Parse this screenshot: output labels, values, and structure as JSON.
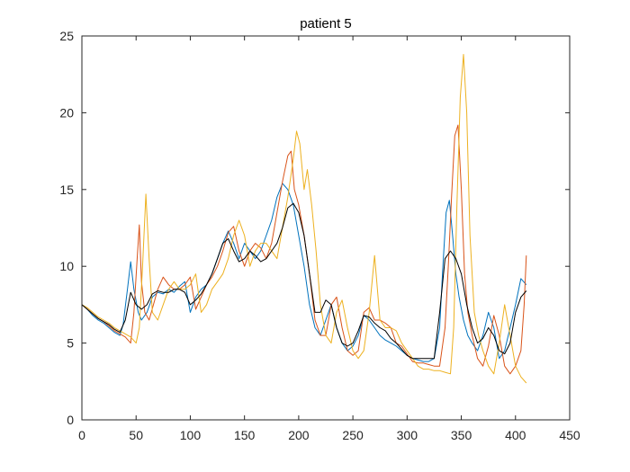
{
  "chart_data": {
    "type": "line",
    "title": "patient 5",
    "xlabel": "",
    "ylabel": "",
    "xlim": [
      0,
      450
    ],
    "ylim": [
      0,
      25
    ],
    "xticks": [
      0,
      50,
      100,
      150,
      200,
      250,
      300,
      350,
      400,
      450
    ],
    "yticks": [
      0,
      5,
      10,
      15,
      20,
      25
    ],
    "grid": false,
    "colors": {
      "axes": "#262626",
      "title": "#000000",
      "series_1": "#0072BD",
      "series_2": "#D95319",
      "series_3": "#EDB120",
      "series_4": "#000000"
    },
    "series": [
      {
        "color": "#0072BD",
        "x": [
          0,
          5,
          10,
          15,
          20,
          25,
          30,
          35,
          38,
          42,
          45,
          48,
          52,
          55,
          60,
          65,
          70,
          75,
          80,
          85,
          90,
          95,
          100,
          105,
          110,
          115,
          120,
          125,
          130,
          135,
          140,
          145,
          150,
          155,
          160,
          165,
          170,
          175,
          180,
          185,
          190,
          195,
          200,
          205,
          210,
          215,
          220,
          225,
          230,
          235,
          240,
          245,
          250,
          255,
          260,
          265,
          270,
          275,
          280,
          285,
          290,
          295,
          300,
          305,
          310,
          315,
          320,
          325,
          330,
          333,
          336,
          339,
          342,
          345,
          348,
          352,
          356,
          360,
          365,
          370,
          375,
          380,
          385,
          390,
          395,
          400,
          405,
          410
        ],
        "y": [
          7.5,
          7.2,
          6.8,
          6.5,
          6.3,
          6.0,
          5.7,
          5.5,
          6.2,
          8.5,
          10.3,
          8.5,
          7.0,
          6.5,
          7.0,
          8.0,
          8.3,
          8.2,
          8.5,
          8.3,
          8.7,
          9.0,
          7.0,
          8.0,
          8.5,
          8.8,
          9.5,
          10.5,
          11.5,
          12.3,
          11.5,
          10.5,
          11.5,
          11.0,
          10.5,
          11.0,
          12.0,
          13.0,
          14.5,
          15.4,
          15.0,
          14.0,
          12.0,
          10.0,
          7.5,
          6.0,
          5.5,
          6.5,
          7.5,
          6.0,
          5.0,
          4.5,
          4.8,
          5.5,
          6.8,
          6.5,
          6.0,
          5.5,
          5.2,
          5.0,
          4.8,
          4.5,
          4.2,
          4.0,
          3.9,
          3.8,
          3.8,
          4.0,
          6.0,
          10.0,
          13.5,
          14.3,
          12.0,
          9.5,
          8.0,
          6.5,
          5.5,
          5.0,
          4.5,
          5.5,
          7.0,
          6.0,
          4.0,
          4.5,
          6.0,
          7.5,
          9.2,
          8.8
        ]
      },
      {
        "color": "#D95319",
        "x": [
          0,
          5,
          10,
          15,
          20,
          25,
          30,
          35,
          40,
          45,
          48,
          51,
          53,
          55,
          58,
          62,
          66,
          70,
          75,
          80,
          85,
          90,
          95,
          100,
          105,
          110,
          115,
          120,
          125,
          130,
          135,
          140,
          145,
          150,
          155,
          160,
          165,
          170,
          175,
          180,
          185,
          190,
          193,
          196,
          200,
          205,
          210,
          215,
          220,
          225,
          230,
          235,
          240,
          245,
          250,
          255,
          260,
          265,
          270,
          275,
          280,
          285,
          290,
          295,
          300,
          305,
          310,
          315,
          320,
          325,
          330,
          335,
          338,
          341,
          344,
          347,
          350,
          353,
          356,
          360,
          365,
          370,
          375,
          380,
          385,
          390,
          395,
          400,
          405,
          408,
          410
        ],
        "y": [
          7.5,
          7.2,
          6.9,
          6.6,
          6.4,
          6.1,
          5.8,
          5.6,
          5.4,
          5.0,
          7.0,
          10.5,
          12.7,
          9.0,
          7.0,
          6.5,
          7.5,
          8.5,
          9.3,
          8.8,
          8.5,
          8.5,
          8.8,
          9.3,
          7.2,
          8.0,
          8.8,
          9.3,
          10.0,
          11.0,
          12.2,
          12.6,
          11.0,
          10.0,
          11.0,
          11.5,
          11.2,
          10.5,
          11.5,
          13.5,
          15.5,
          17.2,
          17.5,
          15.0,
          14.0,
          12.0,
          9.5,
          6.5,
          5.5,
          5.5,
          7.5,
          8.0,
          6.0,
          4.5,
          4.2,
          4.5,
          7.0,
          7.3,
          6.5,
          6.5,
          6.3,
          6.0,
          5.0,
          4.8,
          4.3,
          3.8,
          3.7,
          3.7,
          3.6,
          3.5,
          3.5,
          6.0,
          10.0,
          14.5,
          18.5,
          19.2,
          15.0,
          9.5,
          7.0,
          5.5,
          4.0,
          3.5,
          4.8,
          6.8,
          5.5,
          3.5,
          3.0,
          3.5,
          4.5,
          7.5,
          10.7
        ]
      },
      {
        "color": "#EDB120",
        "x": [
          0,
          5,
          10,
          15,
          20,
          25,
          30,
          35,
          40,
          45,
          50,
          53,
          56,
          59,
          62,
          65,
          70,
          75,
          80,
          85,
          90,
          95,
          100,
          105,
          110,
          115,
          120,
          125,
          130,
          135,
          140,
          145,
          150,
          155,
          160,
          165,
          170,
          175,
          180,
          185,
          190,
          195,
          198,
          201,
          205,
          208,
          212,
          216,
          220,
          225,
          230,
          235,
          240,
          245,
          250,
          255,
          260,
          265,
          270,
          275,
          280,
          285,
          290,
          295,
          300,
          305,
          310,
          315,
          320,
          325,
          330,
          335,
          340,
          343,
          346,
          349,
          352,
          355,
          358,
          362,
          366,
          370,
          375,
          380,
          385,
          390,
          395,
          400,
          405,
          410
        ],
        "y": [
          7.5,
          7.3,
          7.0,
          6.7,
          6.5,
          6.3,
          6.0,
          5.8,
          5.6,
          5.4,
          5.0,
          6.0,
          10.0,
          14.7,
          10.5,
          7.0,
          6.5,
          7.5,
          8.5,
          9.0,
          8.5,
          8.5,
          8.8,
          9.5,
          7.0,
          7.5,
          8.5,
          9.0,
          9.5,
          10.5,
          12.0,
          13.0,
          12.0,
          10.0,
          11.0,
          11.5,
          11.5,
          11.0,
          10.5,
          12.5,
          14.5,
          17.0,
          18.8,
          18.0,
          15.0,
          16.3,
          14.0,
          11.0,
          7.5,
          5.5,
          5.0,
          7.0,
          7.8,
          6.0,
          4.5,
          4.0,
          4.5,
          7.0,
          10.7,
          6.5,
          6.0,
          6.0,
          5.8,
          5.0,
          4.5,
          4.0,
          3.5,
          3.3,
          3.3,
          3.2,
          3.2,
          3.1,
          3.0,
          6.0,
          14.0,
          21.0,
          23.8,
          20.0,
          12.0,
          7.0,
          5.5,
          4.5,
          3.5,
          3.0,
          5.0,
          7.5,
          5.5,
          3.5,
          2.8,
          2.4
        ]
      },
      {
        "color": "#000000",
        "x": [
          0,
          5,
          10,
          15,
          20,
          25,
          30,
          35,
          40,
          45,
          50,
          55,
          60,
          65,
          70,
          75,
          80,
          85,
          90,
          95,
          100,
          105,
          110,
          115,
          120,
          125,
          130,
          135,
          140,
          145,
          150,
          155,
          160,
          165,
          170,
          175,
          180,
          185,
          190,
          195,
          200,
          205,
          210,
          215,
          220,
          225,
          230,
          235,
          240,
          245,
          250,
          255,
          260,
          265,
          270,
          275,
          280,
          285,
          290,
          295,
          300,
          305,
          310,
          315,
          320,
          325,
          330,
          335,
          340,
          345,
          350,
          355,
          360,
          365,
          370,
          375,
          380,
          385,
          390,
          395,
          400,
          405,
          410
        ],
        "y": [
          7.5,
          7.2,
          6.9,
          6.6,
          6.4,
          6.2,
          5.9,
          5.7,
          6.5,
          8.3,
          7.5,
          7.2,
          7.5,
          8.2,
          8.4,
          8.3,
          8.3,
          8.5,
          8.5,
          8.3,
          7.5,
          7.8,
          8.2,
          8.8,
          9.5,
          10.5,
          11.5,
          11.8,
          11.0,
          10.3,
          10.5,
          11.0,
          10.7,
          10.3,
          10.5,
          11.0,
          11.5,
          12.5,
          13.8,
          14.1,
          13.5,
          12.0,
          9.5,
          7.0,
          7.0,
          7.8,
          7.5,
          6.0,
          5.0,
          4.8,
          5.0,
          5.8,
          6.8,
          6.7,
          6.3,
          6.0,
          5.8,
          5.3,
          5.0,
          4.6,
          4.2,
          4.0,
          4.0,
          4.0,
          4.0,
          4.0,
          7.0,
          10.5,
          11.0,
          10.5,
          9.5,
          7.5,
          6.0,
          5.0,
          5.3,
          6.0,
          5.5,
          4.5,
          4.3,
          5.0,
          7.0,
          8.0,
          8.4
        ]
      }
    ]
  }
}
